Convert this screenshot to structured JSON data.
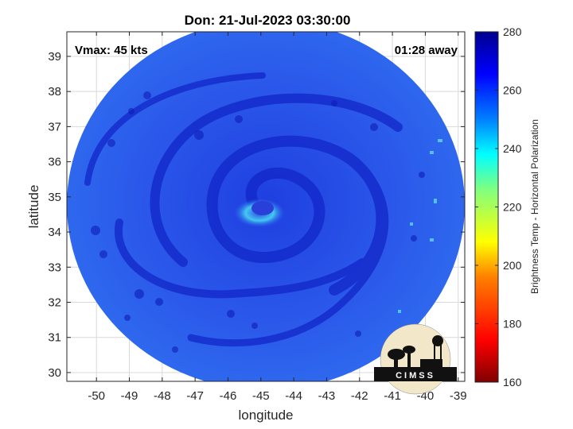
{
  "title": "Don: 21-Jul-2023 03:30:00",
  "vmax_label": "Vmax: 45 kts",
  "time_offset_label": "01:28 away",
  "xlabel": "longitude",
  "ylabel": "latitude",
  "x_ticks": [
    "-50",
    "-49",
    "-48",
    "-47",
    "-46",
    "-45",
    "-44",
    "-43",
    "-42",
    "-41",
    "-40",
    "-39"
  ],
  "y_ticks": [
    "39",
    "38",
    "37",
    "36",
    "35",
    "34",
    "33",
    "32",
    "31",
    "30"
  ],
  "colorbar": {
    "label": "Brightness Temp - Horizontal Polarization",
    "ticks": [
      "280",
      "260",
      "240",
      "220",
      "200",
      "180",
      "160"
    ],
    "range": [
      160,
      280
    ],
    "colors": [
      "#7f0000",
      "#ff0000",
      "#ff8000",
      "#ffff00",
      "#80ff80",
      "#00ffff",
      "#0080ff",
      "#0000ff",
      "#00008f"
    ]
  },
  "logo": {
    "text": "CIMSS"
  },
  "map": {
    "xlim": [
      -50.9,
      -38.8
    ],
    "ylim": [
      29.75,
      39.7
    ],
    "storm_center": [
      -44.8,
      34.7
    ],
    "background_color": "#2a55e8"
  }
}
